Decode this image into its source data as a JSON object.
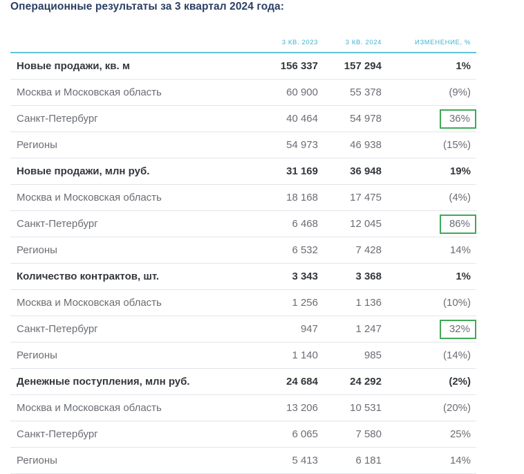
{
  "title": "Операционные результаты за 3 квартал 2024 года:",
  "colors": {
    "title": "#2a3f63",
    "header_text": "#3bb4cf",
    "header_rule": "#5cc4d8",
    "row_rule": "#e3e5ea",
    "highlight_box": "#3daa55",
    "bold_text": "#34373d",
    "regular_text": "#6a6d73"
  },
  "table": {
    "columns": [
      "",
      "3 кв. 2023",
      "3 кв. 2024",
      "Изменение, %"
    ],
    "rows": [
      {
        "label": "Новые продажи, кв. м",
        "q3_2023": "156 337",
        "q3_2024": "157 294",
        "change": "1%",
        "bold": true,
        "highlight": false
      },
      {
        "label": "Москва и Московская область",
        "q3_2023": "60 900",
        "q3_2024": "55 378",
        "change": "(9%)",
        "bold": false,
        "highlight": false
      },
      {
        "label": "Санкт-Петербург",
        "q3_2023": "40 464",
        "q3_2024": "54 978",
        "change": "36%",
        "bold": false,
        "highlight": true
      },
      {
        "label": "Регионы",
        "q3_2023": "54 973",
        "q3_2024": "46 938",
        "change": "(15%)",
        "bold": false,
        "highlight": false
      },
      {
        "label": "Новые продажи, млн руб.",
        "q3_2023": "31 169",
        "q3_2024": "36 948",
        "change": "19%",
        "bold": true,
        "highlight": false
      },
      {
        "label": "Москва и Московская область",
        "q3_2023": "18 168",
        "q3_2024": "17 475",
        "change": "(4%)",
        "bold": false,
        "highlight": false
      },
      {
        "label": "Санкт-Петербург",
        "q3_2023": "6 468",
        "q3_2024": "12 045",
        "change": "86%",
        "bold": false,
        "highlight": true
      },
      {
        "label": "Регионы",
        "q3_2023": "6 532",
        "q3_2024": "7 428",
        "change": "14%",
        "bold": false,
        "highlight": false
      },
      {
        "label": "Количество контрактов, шт.",
        "q3_2023": "3 343",
        "q3_2024": "3 368",
        "change": "1%",
        "bold": true,
        "highlight": false
      },
      {
        "label": "Москва и Московская область",
        "q3_2023": "1 256",
        "q3_2024": "1 136",
        "change": "(10%)",
        "bold": false,
        "highlight": false
      },
      {
        "label": "Санкт-Петербург",
        "q3_2023": "947",
        "q3_2024": "1 247",
        "change": "32%",
        "bold": false,
        "highlight": true
      },
      {
        "label": "Регионы",
        "q3_2023": "1 140",
        "q3_2024": "985",
        "change": "(14%)",
        "bold": false,
        "highlight": false
      },
      {
        "label": "Денежные поступления, млн руб.",
        "q3_2023": "24 684",
        "q3_2024": "24 292",
        "change": "(2%)",
        "bold": true,
        "highlight": false
      },
      {
        "label": "Москва и Московская область",
        "q3_2023": "13 206",
        "q3_2024": "10 531",
        "change": "(20%)",
        "bold": false,
        "highlight": false
      },
      {
        "label": "Санкт-Петербург",
        "q3_2023": "6 065",
        "q3_2024": "7 580",
        "change": "25%",
        "bold": false,
        "highlight": false
      },
      {
        "label": "Регионы",
        "q3_2023": "5 413",
        "q3_2024": "6 181",
        "change": "14%",
        "bold": false,
        "highlight": false
      }
    ]
  }
}
